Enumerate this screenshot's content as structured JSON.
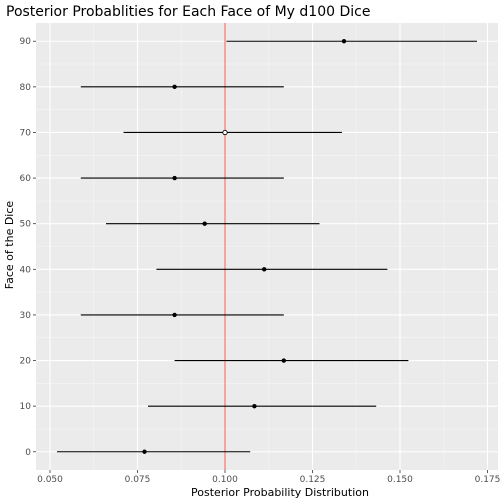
{
  "chart_data": {
    "type": "errorbar",
    "title": "Posterior Probablities for Each Face of My d100 Dice",
    "xlabel": "Posterior Probability Distribution",
    "ylabel": "Face of the Dice",
    "xlim": [
      0.046,
      0.178
    ],
    "ylim": [
      -4,
      94
    ],
    "x_ticks": [
      0.05,
      0.075,
      0.1,
      0.125,
      0.15,
      0.175
    ],
    "x_tick_labels": [
      "0.050",
      "0.075",
      "0.100",
      "0.125",
      "0.150",
      "0.175"
    ],
    "y_ticks": [
      0,
      10,
      20,
      30,
      40,
      50,
      60,
      70,
      80,
      90
    ],
    "y_tick_labels": [
      "0",
      "10",
      "20",
      "30",
      "40",
      "50",
      "60",
      "70",
      "80",
      "90"
    ],
    "reference_line": {
      "x": 0.1,
      "color": "#f8766d"
    },
    "points": [
      {
        "face": 0,
        "estimate": 0.077,
        "lower": 0.052,
        "upper": 0.1072
      },
      {
        "face": 10,
        "estimate": 0.1084,
        "lower": 0.078,
        "upper": 0.1432
      },
      {
        "face": 20,
        "estimate": 0.1168,
        "lower": 0.0856,
        "upper": 0.1524
      },
      {
        "face": 30,
        "estimate": 0.0856,
        "lower": 0.0588,
        "upper": 0.1168
      },
      {
        "face": 40,
        "estimate": 0.1112,
        "lower": 0.0804,
        "upper": 0.1464
      },
      {
        "face": 50,
        "estimate": 0.0942,
        "lower": 0.066,
        "upper": 0.127
      },
      {
        "face": 60,
        "estimate": 0.0856,
        "lower": 0.0588,
        "upper": 0.1168
      },
      {
        "face": 70,
        "estimate": 0.1,
        "lower": 0.071,
        "upper": 0.1334,
        "hollow": true
      },
      {
        "face": 80,
        "estimate": 0.0856,
        "lower": 0.0588,
        "upper": 0.1168
      },
      {
        "face": 90,
        "estimate": 0.134,
        "lower": 0.1004,
        "upper": 0.172
      }
    ],
    "panel_background": "#ebebeb",
    "grid": true,
    "legend": "none"
  }
}
